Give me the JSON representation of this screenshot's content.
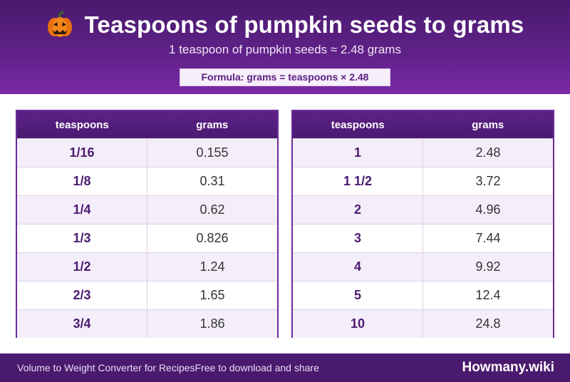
{
  "header": {
    "icon": "pumpkin-icon",
    "title": "Teaspoons of pumpkin seeds to grams",
    "subtitle": "1 teaspoon of pumpkin seeds ≈ 2.48 grams",
    "formula": "Formula: grams = teaspoons × 2.48"
  },
  "tables": [
    {
      "headers": [
        "teaspoons",
        "grams"
      ],
      "rows": [
        {
          "teaspoons": "1/16",
          "grams": "0.155"
        },
        {
          "teaspoons": "1/8",
          "grams": "0.31"
        },
        {
          "teaspoons": "1/4",
          "grams": "0.62"
        },
        {
          "teaspoons": "1/3",
          "grams": "0.826"
        },
        {
          "teaspoons": "1/2",
          "grams": "1.24"
        },
        {
          "teaspoons": "2/3",
          "grams": "1.65"
        },
        {
          "teaspoons": "3/4",
          "grams": "1.86"
        }
      ]
    },
    {
      "headers": [
        "teaspoons",
        "grams"
      ],
      "rows": [
        {
          "teaspoons": "1",
          "grams": "2.48"
        },
        {
          "teaspoons": "1 1/2",
          "grams": "3.72"
        },
        {
          "teaspoons": "2",
          "grams": "4.96"
        },
        {
          "teaspoons": "3",
          "grams": "7.44"
        },
        {
          "teaspoons": "4",
          "grams": "9.92"
        },
        {
          "teaspoons": "5",
          "grams": "12.4"
        },
        {
          "teaspoons": "10",
          "grams": "24.8"
        }
      ]
    }
  ],
  "footer": {
    "left_text_1": "Volume to Weight Converter for Recipes",
    "left_text_2": "Free to download and share",
    "brand": "Howmany.wiki"
  },
  "colors": {
    "primary": "#4a1a6e",
    "accent": "#7a2aa6",
    "row_alt": "#f4eefa"
  }
}
